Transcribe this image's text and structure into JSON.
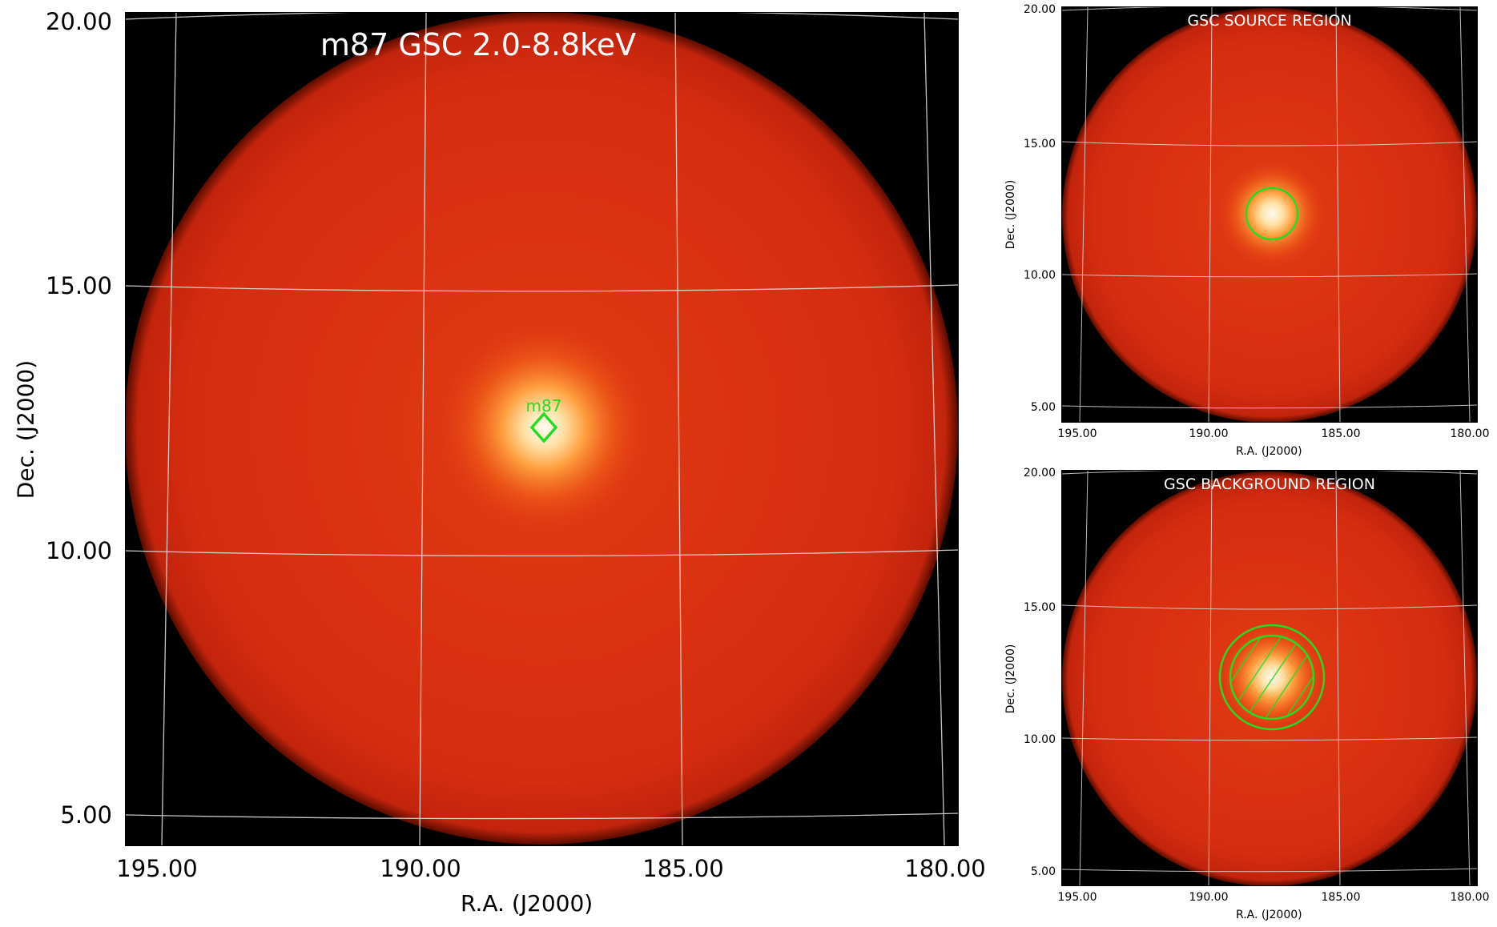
{
  "colors": {
    "background": "#000000",
    "disk_outer": "#d42a10",
    "disk_inner": "#e03512",
    "core": "#fff7e8",
    "region": "#22dd22",
    "grid": "#d8d8d8",
    "title": "#ffffff"
  },
  "main": {
    "title": "m87 GSC 2.0-8.8keV",
    "source_label": "m87",
    "source_marker_icon": "diamond-icon",
    "xlabel": "R.A. (J2000)",
    "ylabel": "Dec. (J2000)",
    "xticks": [
      "195.00",
      "190.00",
      "185.00",
      "180.00"
    ],
    "yticks": [
      "20.00",
      "15.00",
      "10.00",
      "5.00"
    ]
  },
  "source_panel": {
    "title": "GSC SOURCE REGION",
    "region_icon": "circle-region-icon",
    "xlabel": "R.A. (J2000)",
    "ylabel": "Dec. (J2000)",
    "xticks": [
      "195.00",
      "190.00",
      "185.00",
      "180.00"
    ],
    "yticks": [
      "20.00",
      "15.00",
      "10.00",
      "5.00"
    ]
  },
  "background_panel": {
    "title": "GSC BACKGROUND REGION",
    "region_icon": "annulus-region-icon",
    "xlabel": "R.A. (J2000)",
    "ylabel": "Dec. (J2000)",
    "xticks": [
      "195.00",
      "190.00",
      "185.00",
      "180.00"
    ],
    "yticks": [
      "20.00",
      "15.00",
      "10.00",
      "5.00"
    ]
  }
}
